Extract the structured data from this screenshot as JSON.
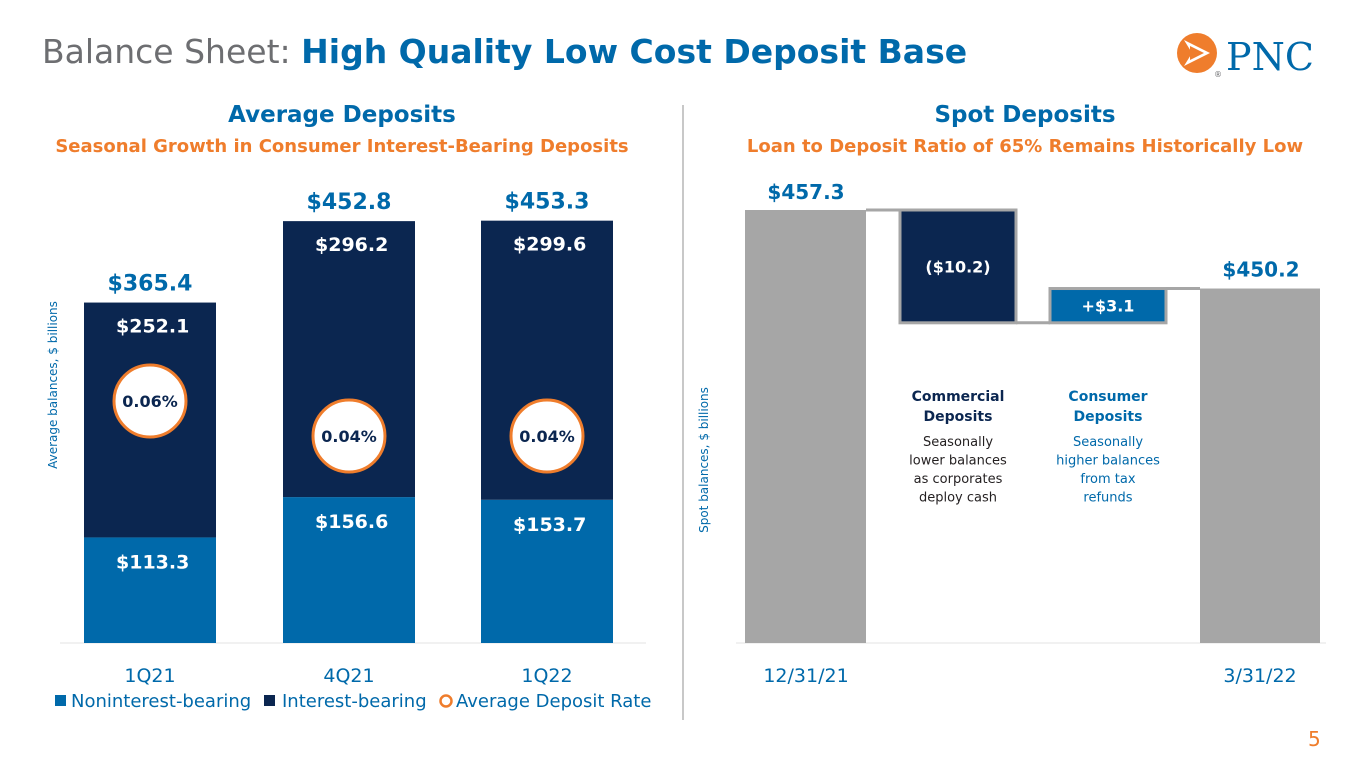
{
  "header": {
    "title_light": "Balance Sheet:",
    "title_bold": "High Quality Low Cost Deposit Base",
    "logo_text": "PNC",
    "logo_reg": "®"
  },
  "colors": {
    "dark_navy": "#0b2650",
    "blue": "#0069aa",
    "orange": "#ef7d2c",
    "gray": "#a6a6a6",
    "text_gray": "#6d6e71"
  },
  "left_panel": {
    "title": "Average Deposits",
    "subtitle": "Seasonal Growth in Consumer Interest-Bearing Deposits"
  },
  "right_panel": {
    "title": "Spot Deposits",
    "subtitle": "Loan to Deposit Ratio of 65% Remains Historically Low"
  },
  "chart_data": [
    {
      "type": "bar",
      "stacked": true,
      "categories": [
        "1Q21",
        "4Q21",
        "1Q22"
      ],
      "series": [
        {
          "name": "Noninterest-bearing",
          "values": [
            113.3,
            156.6,
            153.7
          ],
          "labels": [
            "$113.3",
            "$156.6",
            "$153.7"
          ],
          "color": "#0069aa"
        },
        {
          "name": "Interest-bearing",
          "values": [
            252.1,
            296.2,
            299.6
          ],
          "labels": [
            "$252.1",
            "$296.2",
            "$299.6"
          ],
          "color": "#0b2650"
        }
      ],
      "totals": [
        365.4,
        452.8,
        453.3
      ],
      "total_labels": [
        "$365.4",
        "$452.8",
        "$453.3"
      ],
      "average_deposit_rate": {
        "name": "Average Deposit Rate",
        "labels": [
          "0.06%",
          "0.04%",
          "0.04%"
        ],
        "color": "#ef7d2c"
      },
      "ylabel": "Average balances, $ billions",
      "ylim": [
        0,
        460
      ],
      "legend_position": "bottom"
    },
    {
      "type": "bar",
      "subtype": "waterfall",
      "categories": [
        "12/31/21",
        "3/31/22"
      ],
      "start": {
        "value": 457.3,
        "label": "$457.3"
      },
      "steps": [
        {
          "value": -10.2,
          "label": "($10.2)",
          "name": "Commercial Deposits",
          "note": "Seasonally lower balances as corporates deploy cash",
          "name_lines": [
            "Commercial",
            "Deposits"
          ],
          "note_lines": [
            "Seasonally",
            "lower balances",
            "as corporates",
            "deploy cash"
          ],
          "color": "#0b2650"
        },
        {
          "value": 3.1,
          "label": "+$3.1",
          "name": "Consumer Deposits",
          "note": "Seasonally higher balances from tax refunds",
          "name_lines": [
            "Consumer",
            "Deposits"
          ],
          "note_lines": [
            "Seasonally",
            "higher balances",
            "from tax",
            "refunds"
          ],
          "color": "#0069aa"
        }
      ],
      "end": {
        "value": 450.2,
        "label": "$450.2"
      },
      "ylabel": "Spot balances, $ billions"
    }
  ],
  "footer": {
    "page_number": "5"
  }
}
